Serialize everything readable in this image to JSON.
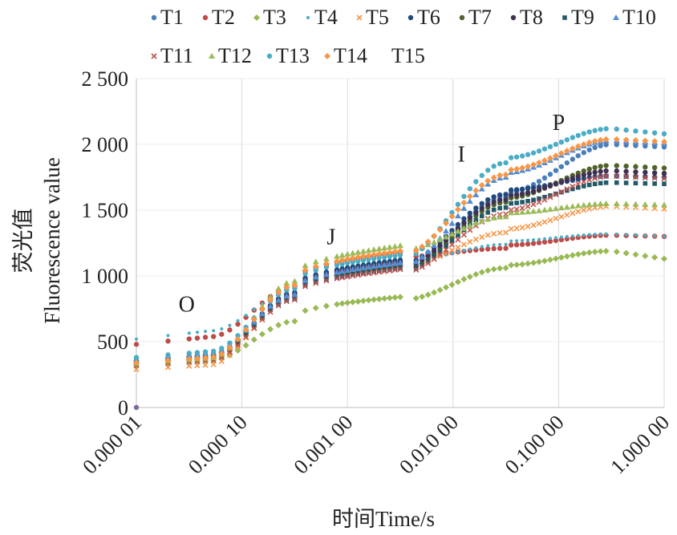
{
  "chart_data": {
    "type": "scatter",
    "x_scale": "log",
    "xlim": [
      1e-05,
      1.0
    ],
    "ylim": [
      0,
      2500
    ],
    "y_ticks": [
      0,
      500,
      1000,
      1500,
      2000,
      2500
    ],
    "y_tick_labels": [
      "0",
      "500",
      "1 000",
      "1 500",
      "2 000",
      "2 500"
    ],
    "x_ticks": [
      1e-05,
      0.0001,
      0.001,
      0.01,
      0.1,
      1.0
    ],
    "x_tick_labels": [
      "0.000 01",
      "0.000 10",
      "0.001 00",
      "0.010 00",
      "0.100 00",
      "1.000 00"
    ],
    "xlabel": "时间Time/s",
    "ylabel_cn": "荧光值",
    "ylabel_en": "Fluorescence value",
    "grid": "vertical",
    "legend_position": "top",
    "annotations": [
      {
        "text": "O",
        "x": 3e-05,
        "y": 730
      },
      {
        "text": "J",
        "x": 0.0007,
        "y": 1240
      },
      {
        "text": "I",
        "x": 0.012,
        "y": 1870
      },
      {
        "text": "P",
        "x": 0.1,
        "y": 2110
      }
    ],
    "series": [
      {
        "name": "T1",
        "color": "#4a7ebb",
        "marker": "circle",
        "O": 350,
        "J": 1080,
        "I": 1600,
        "P": 2000,
        "end": 1980
      },
      {
        "name": "T2",
        "color": "#be4b48",
        "marker": "circle",
        "O": 480,
        "J": 1180,
        "I": 1210,
        "P": 1310,
        "end": 1300
      },
      {
        "name": "T3",
        "color": "#98b954",
        "marker": "diamond",
        "O": 320,
        "J": 840,
        "I": 1060,
        "P": 1190,
        "end": 1130
      },
      {
        "name": "T4",
        "color": "#4bacc6",
        "marker": "dot",
        "O": 520,
        "J": 1140,
        "I": 1240,
        "P": 1320,
        "end": 1300
      },
      {
        "name": "T5",
        "color": "#f79646",
        "marker": "x",
        "O": 290,
        "J": 1100,
        "I": 1330,
        "P": 1530,
        "end": 1510
      },
      {
        "name": "T6",
        "color": "#1f497d",
        "marker": "circle",
        "O": 340,
        "J": 1120,
        "I": 1620,
        "P": 1760,
        "end": 1750
      },
      {
        "name": "T7",
        "color": "#4f6228",
        "marker": "circle",
        "O": 330,
        "J": 1070,
        "I": 1560,
        "P": 1840,
        "end": 1820
      },
      {
        "name": "T8",
        "color": "#403152",
        "marker": "circle",
        "O": 345,
        "J": 1100,
        "I": 1580,
        "P": 1800,
        "end": 1780
      },
      {
        "name": "T9",
        "color": "#215968",
        "marker": "square",
        "O": 360,
        "J": 1060,
        "I": 1520,
        "P": 1710,
        "end": 1700
      },
      {
        "name": "T10",
        "color": "#558ed5",
        "marker": "triangle",
        "O": 370,
        "J": 1100,
        "I": 1750,
        "P": 2030,
        "end": 2010
      },
      {
        "name": "T11",
        "color": "#c0504d",
        "marker": "x",
        "O": 320,
        "J": 1050,
        "I": 1470,
        "P": 1760,
        "end": 1740
      },
      {
        "name": "T12",
        "color": "#9bbb59",
        "marker": "triangle",
        "O": 335,
        "J": 1230,
        "I": 1450,
        "P": 1550,
        "end": 1540
      },
      {
        "name": "T13",
        "color": "#4bacc6",
        "marker": "circle",
        "O": 380,
        "J": 1160,
        "I": 1860,
        "P": 2120,
        "end": 2080
      },
      {
        "name": "T14",
        "color": "#f79646",
        "marker": "diamond",
        "O": 340,
        "J": 1190,
        "I": 1770,
        "P": 2040,
        "end": 2020
      },
      {
        "name": "T15",
        "color": "#ffffff",
        "marker": "none",
        "O": 0,
        "J": 0,
        "I": 0,
        "P": 0,
        "end": 0
      }
    ]
  }
}
